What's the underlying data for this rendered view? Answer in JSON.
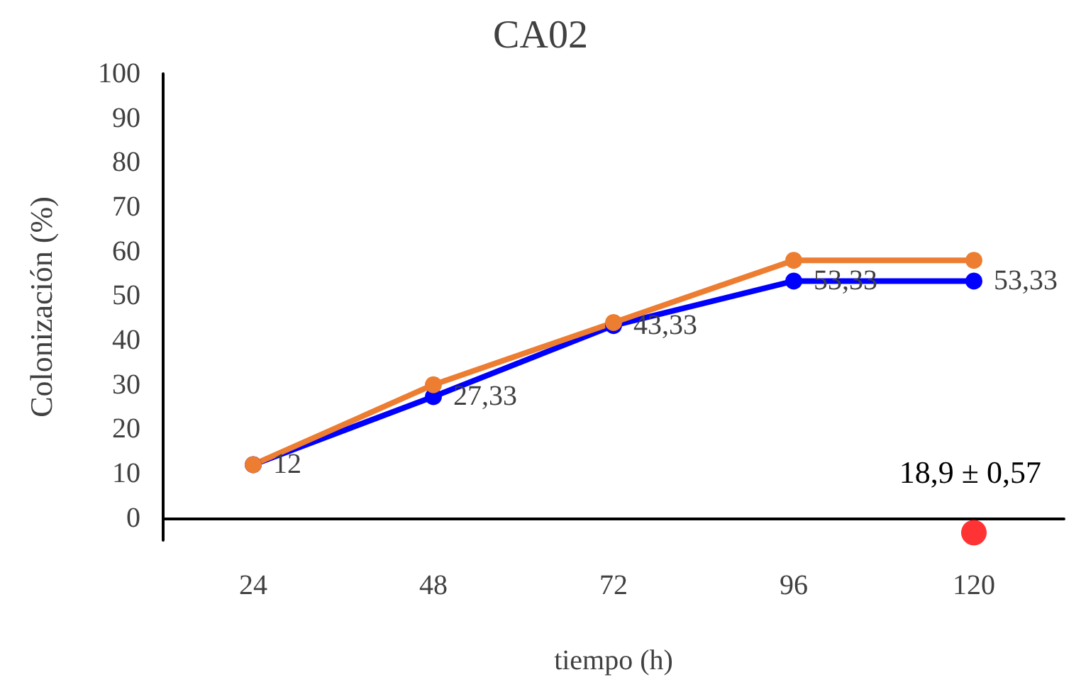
{
  "chart_data": {
    "type": "line",
    "title": "CA02",
    "xlabel": "tiempo (h)",
    "ylabel": "Colonización (%)",
    "categories": [
      "24",
      "48",
      "72",
      "96",
      "120"
    ],
    "series": [
      {
        "color": "#0000ff",
        "values": [
          12,
          27.33,
          43.33,
          53.33,
          53.33
        ],
        "value_labels": [
          "12",
          "27,33",
          "43,33",
          "53,33",
          "53,33"
        ]
      },
      {
        "color": "#ed7d31",
        "values": [
          12,
          30,
          44,
          58,
          58
        ]
      },
      {
        "type": "scatter",
        "color": "#ff0000",
        "x": [
          "120"
        ],
        "values": [
          -3.3
        ]
      }
    ],
    "ylim": [
      -5,
      100
    ],
    "yticks": [
      0,
      10,
      20,
      30,
      40,
      50,
      60,
      70,
      80,
      90,
      100
    ],
    "annotations": [
      "18,9 ± 0,57"
    ],
    "grid": false,
    "marker": "circle",
    "line_style": "solid"
  }
}
